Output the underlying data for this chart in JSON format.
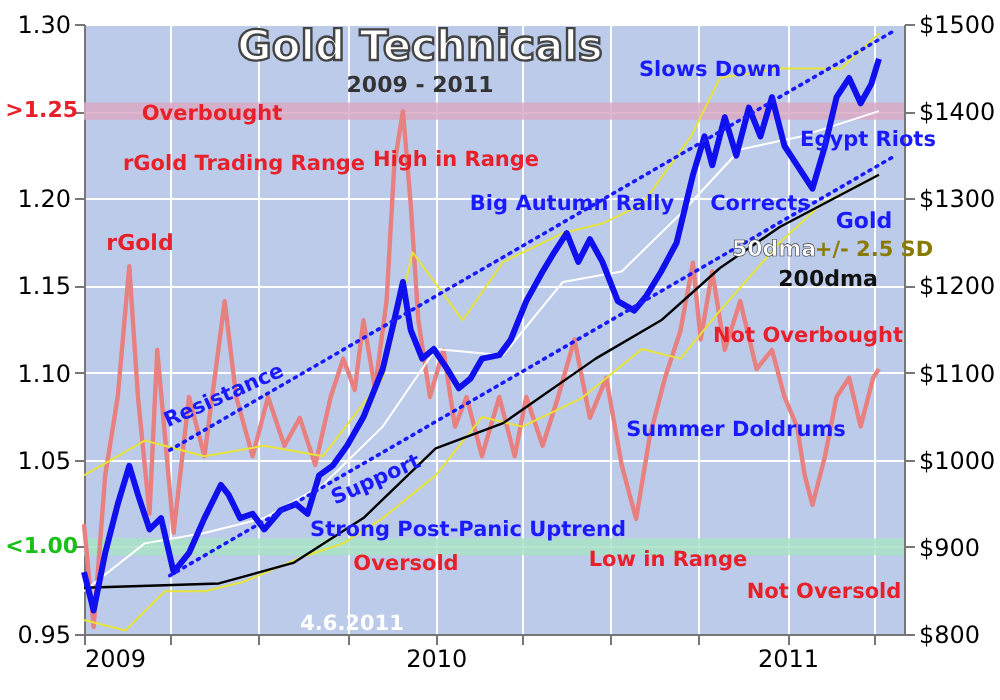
{
  "chart_data": {
    "type": "line",
    "title": "Gold Technicals",
    "subtitle": "2009 - 2011",
    "xlim": [
      "2009-01-01",
      "2011-05-02"
    ],
    "xticks": [
      "2009",
      {
        "value": "2009-04-01",
        "label": null
      },
      {
        "value": "2009-07-01",
        "label": null
      },
      {
        "value": "2009-10-01",
        "label": null
      },
      "2010",
      {
        "value": "2010-04-01",
        "label": null
      },
      {
        "value": "2010-07-01",
        "label": null
      },
      {
        "value": "2010-10-01",
        "label": null
      },
      "2011",
      {
        "value": "2011-04-01",
        "label": null
      }
    ],
    "ylim": [
      0.95,
      1.3
    ],
    "yticks": [
      {
        "value": 0.95,
        "label": "0.95"
      },
      {
        "value": 1.0,
        "label": null
      },
      {
        "value": 1.05,
        "label": "1.05"
      },
      {
        "value": 1.1,
        "label": "1.10"
      },
      {
        "value": 1.15,
        "label": "1.15"
      },
      {
        "value": 1.2,
        "label": "1.20"
      },
      {
        "value": 1.25,
        "label": null
      },
      {
        "value": 1.3,
        "label": "1.30"
      }
    ],
    "y2lim": [
      800,
      1500
    ],
    "y2ticks": [
      {
        "value": 800,
        "label": "$800"
      },
      {
        "value": 900,
        "label": "$900"
      },
      {
        "value": 1000,
        "label": "$1000"
      },
      {
        "value": 1100,
        "label": "$1100"
      },
      {
        "value": 1200,
        "label": "$1200"
      },
      {
        "value": 1300,
        "label": "$1300"
      },
      {
        "value": 1400,
        "label": "$1400"
      },
      {
        "value": 1500,
        "label": "$1500"
      }
    ],
    "grid": true,
    "bands": [
      {
        "axis": "y",
        "from": 1.245,
        "to": 1.255,
        "label": ">1.25",
        "color": "#d9a9c4"
      },
      {
        "axis": "y",
        "from": 0.995,
        "to": 1.005,
        "label": "<1.00",
        "color": "#a9e3c6"
      }
    ],
    "series": [
      {
        "name": "rGold",
        "type": "line",
        "axis": "y",
        "color": "#e88080",
        "x": [
          "2009-01-01",
          "2009-01-11",
          "2009-01-23",
          "2009-02-05",
          "2009-02-17",
          "2009-02-26",
          "2009-03-10",
          "2009-03-18",
          "2009-04-04",
          "2009-04-20",
          "2009-05-06",
          "2009-05-27",
          "2009-06-08",
          "2009-06-25",
          "2009-07-11",
          "2009-07-28",
          "2009-08-13",
          "2009-08-29",
          "2009-09-14",
          "2009-09-27",
          "2009-10-09",
          "2009-10-18",
          "2009-10-30",
          "2009-11-11",
          "2009-11-19",
          "2009-11-28",
          "2009-12-06",
          "2009-12-14",
          "2009-12-26",
          "2010-01-09",
          "2010-01-21",
          "2010-02-02",
          "2010-02-18",
          "2010-03-08",
          "2010-03-24",
          "2010-04-05",
          "2010-04-22",
          "2010-05-08",
          "2010-05-25",
          "2010-06-10",
          "2010-06-27",
          "2010-07-13",
          "2010-07-28",
          "2010-08-11",
          "2010-08-27",
          "2010-09-12",
          "2010-09-25",
          "2010-10-03",
          "2010-10-15",
          "2010-10-28",
          "2010-11-13",
          "2010-11-30",
          "2010-12-16",
          "2010-12-29",
          "2011-01-11",
          "2011-01-19",
          "2011-01-27",
          "2011-02-09",
          "2011-02-21",
          "2011-03-06",
          "2011-03-18",
          "2011-03-31",
          "2011-04-06"
        ],
        "values": [
          1.013,
          0.954,
          1.041,
          1.086,
          1.161,
          1.086,
          1.019,
          1.113,
          1.008,
          1.086,
          1.052,
          1.141,
          1.086,
          1.052,
          1.086,
          1.058,
          1.074,
          1.047,
          1.086,
          1.108,
          1.09,
          1.13,
          1.091,
          1.141,
          1.219,
          1.25,
          1.197,
          1.13,
          1.086,
          1.113,
          1.069,
          1.086,
          1.052,
          1.086,
          1.052,
          1.086,
          1.058,
          1.086,
          1.119,
          1.074,
          1.097,
          1.047,
          1.016,
          1.063,
          1.097,
          1.124,
          1.163,
          1.119,
          1.158,
          1.113,
          1.141,
          1.102,
          1.113,
          1.086,
          1.069,
          1.041,
          1.024,
          1.052,
          1.086,
          1.097,
          1.069,
          1.097,
          1.102
        ]
      },
      {
        "type": "line",
        "axis": "y2",
        "color": "#e6e33a",
        "x": [
          "2009-01-01",
          "2009-03-05",
          "2009-05-06",
          "2009-07-07",
          "2009-09-06",
          "2009-11-07",
          "2009-12-08",
          "2010-01-29",
          "2010-03-12",
          "2010-05-13",
          "2010-06-23",
          "2010-08-03",
          "2010-09-23",
          "2010-10-23",
          "2010-12-24",
          "2011-02-26",
          "2011-04-06"
        ],
        "values": [
          982,
          1022,
          1004,
          1016,
          1004,
          1093,
          1238,
          1160,
          1227,
          1260,
          1271,
          1293,
          1371,
          1438,
          1449,
          1449,
          1489
        ]
      },
      {
        "type": "line",
        "axis": "y2",
        "color": "#e6e33a",
        "x": [
          "2009-01-01",
          "2009-02-13",
          "2009-03-26",
          "2009-05-06",
          "2009-06-16",
          "2009-08-17",
          "2009-09-27",
          "2009-11-07",
          "2010-01-01",
          "2010-02-18",
          "2010-04-01",
          "2010-06-02",
          "2010-08-03",
          "2010-09-12",
          "2010-10-23",
          "2010-12-24",
          "2011-02-05",
          "2011-04-06"
        ],
        "values": [
          816,
          804,
          849,
          849,
          860,
          889,
          904,
          933,
          982,
          1049,
          1038,
          1071,
          1127,
          1116,
          1171,
          1249,
          1293,
          1327
        ]
      },
      {
        "name": "50dma",
        "type": "line",
        "axis": "y2",
        "color": "#ffffff",
        "x": [
          "2009-01-01",
          "2009-03-05",
          "2009-05-06",
          "2009-07-07",
          "2009-09-06",
          "2009-11-07",
          "2010-01-01",
          "2010-03-12",
          "2010-05-13",
          "2010-07-13",
          "2010-09-12",
          "2010-11-13",
          "2011-01-15",
          "2011-04-06"
        ],
        "values": [
          849,
          904,
          916,
          933,
          971,
          1038,
          1127,
          1120,
          1204,
          1216,
          1282,
          1356,
          1371,
          1400
        ]
      },
      {
        "name": "200dma",
        "type": "line",
        "axis": "y2",
        "color": "#000000",
        "x": [
          "2009-01-01",
          "2009-03-26",
          "2009-05-21",
          "2009-08-07",
          "2009-10-18",
          "2010-01-01",
          "2010-03-12",
          "2010-06-16",
          "2010-08-23",
          "2010-10-23",
          "2010-12-24",
          "2011-04-06"
        ],
        "values": [
          853,
          856,
          858,
          882,
          933,
          1013,
          1042,
          1116,
          1160,
          1220,
          1267,
          1327
        ]
      },
      {
        "name": "Gold",
        "type": "line",
        "axis": "y2",
        "color": "#1010ee",
        "x": [
          "2009-01-01",
          "2009-01-11",
          "2009-01-23",
          "2009-02-05",
          "2009-02-17",
          "2009-02-26",
          "2009-03-10",
          "2009-03-22",
          "2009-04-04",
          "2009-04-20",
          "2009-05-06",
          "2009-05-23",
          "2009-05-31",
          "2009-06-12",
          "2009-06-25",
          "2009-07-07",
          "2009-07-24",
          "2009-08-09",
          "2009-08-21",
          "2009-09-02",
          "2009-09-16",
          "2009-10-01",
          "2009-10-18",
          "2009-11-07",
          "2009-11-19",
          "2009-11-28",
          "2009-12-06",
          "2009-12-18",
          "2009-12-30",
          "2010-01-13",
          "2010-01-25",
          "2010-02-06",
          "2010-02-18",
          "2010-03-08",
          "2010-03-20",
          "2010-04-05",
          "2010-04-22",
          "2010-05-04",
          "2010-05-17",
          "2010-05-29",
          "2010-06-10",
          "2010-06-23",
          "2010-07-09",
          "2010-07-26",
          "2010-08-07",
          "2010-08-23",
          "2010-09-08",
          "2010-09-25",
          "2010-10-07",
          "2010-10-15",
          "2010-10-28",
          "2010-11-09",
          "2010-11-22",
          "2010-12-04",
          "2010-12-16",
          "2010-12-29",
          "2011-01-11",
          "2011-01-27",
          "2011-02-09",
          "2011-02-21",
          "2011-03-06",
          "2011-03-18",
          "2011-03-29",
          "2011-04-06"
        ],
        "values": [
          871,
          827,
          893,
          949,
          993,
          960,
          920,
          933,
          871,
          893,
          933,
          971,
          960,
          933,
          938,
          920,
          942,
          949,
          938,
          982,
          993,
          1016,
          1049,
          1104,
          1160,
          1204,
          1149,
          1116,
          1127,
          1104,
          1082,
          1093,
          1116,
          1120,
          1138,
          1182,
          1216,
          1238,
          1260,
          1227,
          1253,
          1227,
          1182,
          1171,
          1187,
          1216,
          1249,
          1327,
          1371,
          1338,
          1393,
          1349,
          1404,
          1371,
          1416,
          1360,
          1338,
          1311,
          1360,
          1416,
          1438,
          1409,
          1431,
          1460
        ]
      },
      {
        "type": "line",
        "axis": "y2",
        "color": "#1a1aff",
        "line_style": "dotted",
        "x": [
          "2009-03-31",
          "2011-04-23"
        ],
        "values": [
          1011,
          1493
        ]
      },
      {
        "type": "line",
        "axis": "y2",
        "color": "#1a1aff",
        "line_style": "dotted",
        "x": [
          "2009-03-31",
          "2011-04-23"
        ],
        "values": [
          867,
          1349
        ]
      }
    ],
    "annotations": [
      "Overbought",
      "rGold Trading Range",
      "High in Range",
      "Big Autumn Rally",
      "Slows Down",
      "Egypt Riots",
      "Corrects",
      "+/- 2.5 SD",
      "Resistance",
      "Support",
      "Strong Post-Panic Uptrend",
      "Summer Doldrums",
      "Low in Range",
      "Not Overbought",
      "Not Oversold",
      "Oversold",
      "4.6.2011"
    ]
  }
}
